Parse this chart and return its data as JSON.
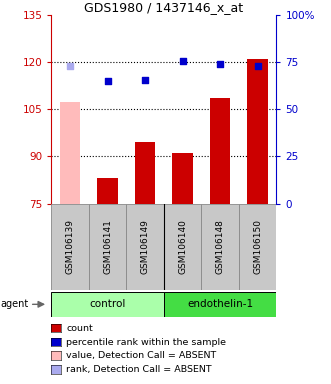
{
  "title": "GDS1980 / 1437146_x_at",
  "samples": [
    "GSM106139",
    "GSM106141",
    "GSM106149",
    "GSM106140",
    "GSM106148",
    "GSM106150"
  ],
  "bar_values": [
    107.5,
    83.0,
    94.5,
    91.0,
    108.5,
    121.0
  ],
  "bar_colors": [
    "#ffbbbb",
    "#cc0000",
    "#cc0000",
    "#cc0000",
    "#cc0000",
    "#cc0000"
  ],
  "dot_values": [
    119.0,
    114.0,
    114.5,
    120.5,
    119.5,
    119.0
  ],
  "dot_colors": [
    "#aaaaee",
    "#0000cc",
    "#0000cc",
    "#0000cc",
    "#0000cc",
    "#0000cc"
  ],
  "ylim_left": [
    75,
    135
  ],
  "ylim_right": [
    0,
    100
  ],
  "yticks_left": [
    75,
    90,
    105,
    120,
    135
  ],
  "yticks_right": [
    0,
    25,
    50,
    75,
    100
  ],
  "ytick_labels_left": [
    "75",
    "90",
    "105",
    "120",
    "135"
  ],
  "ytick_labels_right": [
    "0",
    "25",
    "50",
    "75",
    "100%"
  ],
  "hgrid_values": [
    90,
    105,
    120
  ],
  "bar_bottom": 75,
  "legend_items": [
    {
      "label": "count",
      "color": "#cc0000"
    },
    {
      "label": "percentile rank within the sample",
      "color": "#0000cc"
    },
    {
      "label": "value, Detection Call = ABSENT",
      "color": "#ffbbbb"
    },
    {
      "label": "rank, Detection Call = ABSENT",
      "color": "#aaaaee"
    }
  ],
  "left_color": "#cc0000",
  "right_color": "#0000cc",
  "background_color": "#ffffff",
  "ctrl_color": "#aaffaa",
  "endo_color": "#44dd44",
  "gray_color": "#c8c8c8",
  "gray_border": "#888888"
}
